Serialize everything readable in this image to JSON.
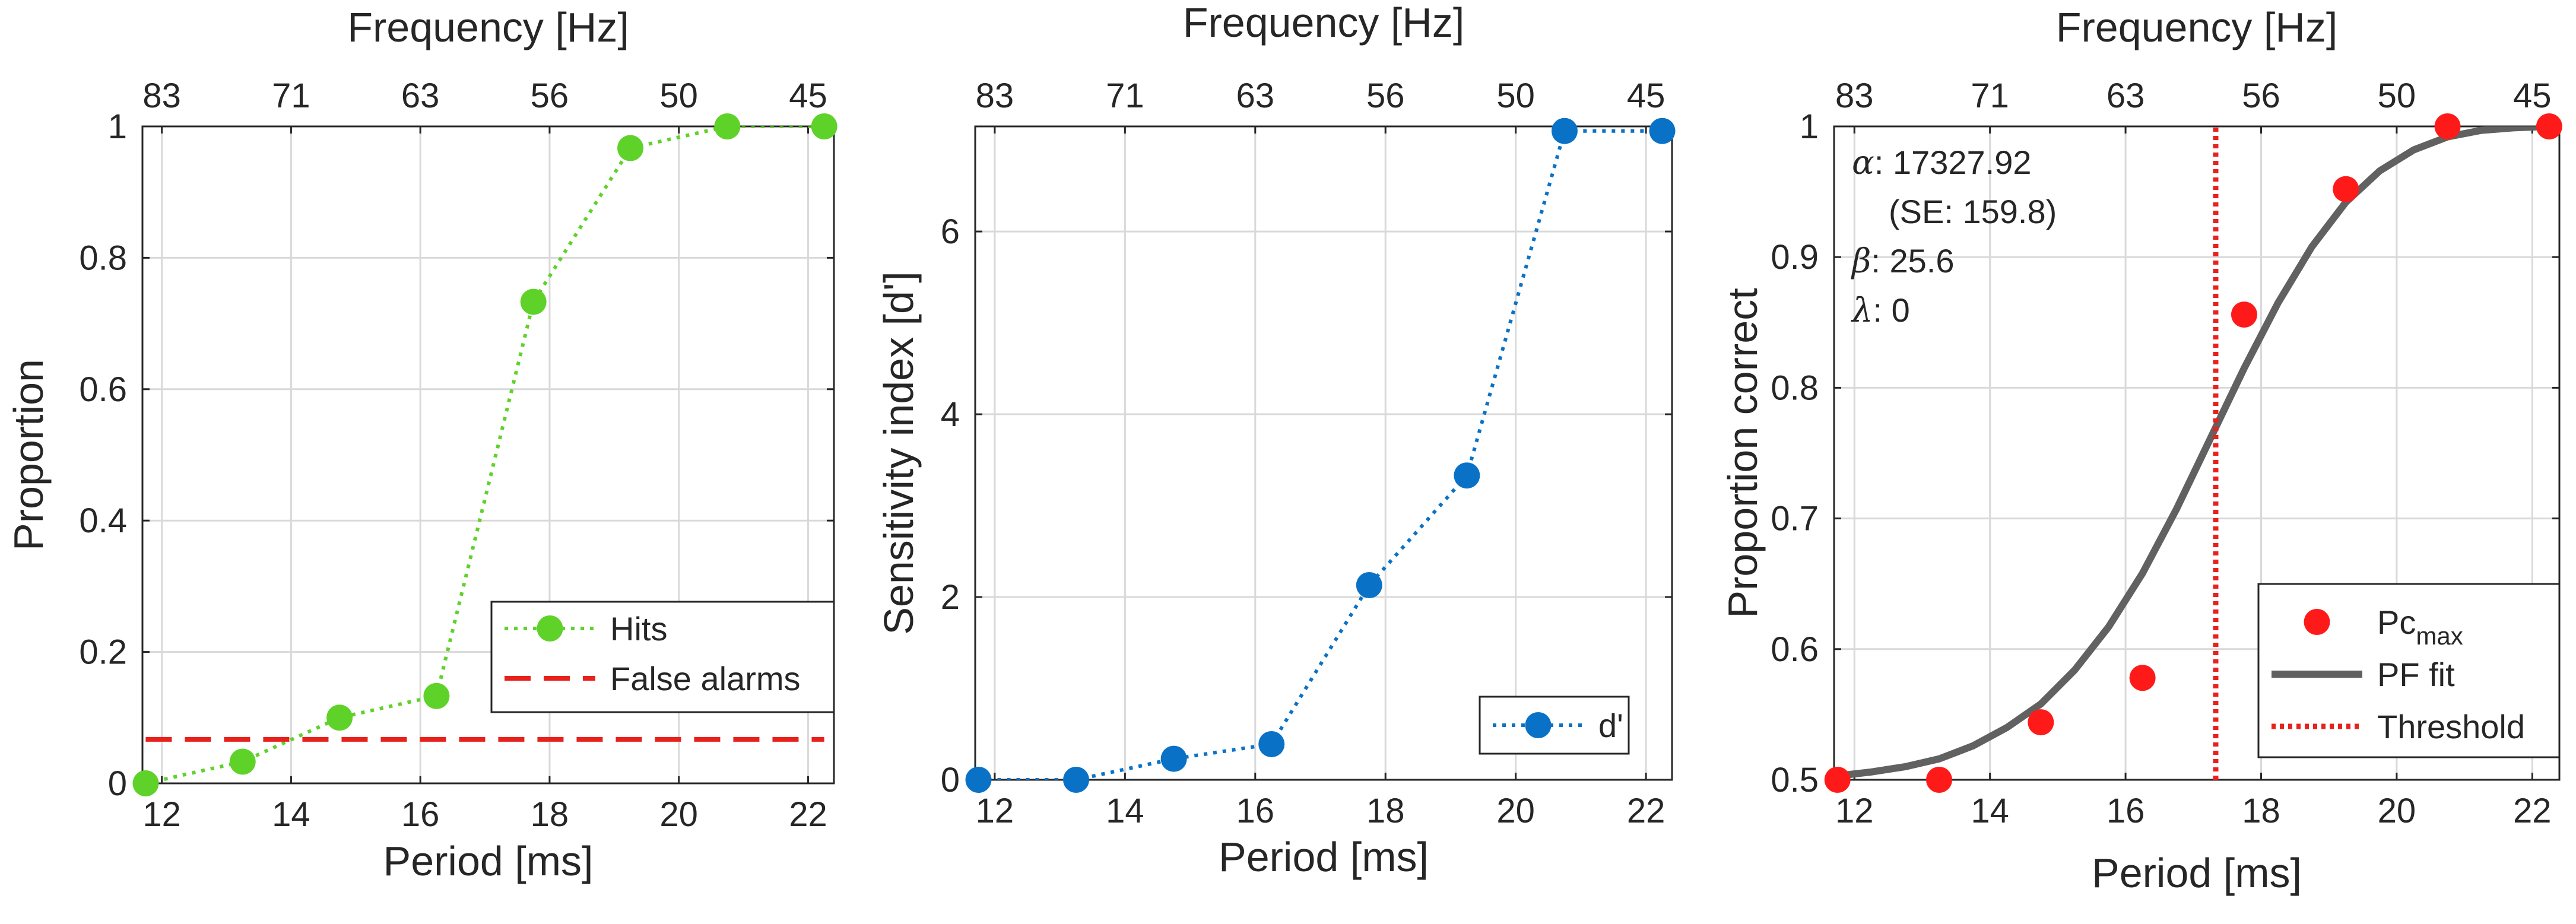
{
  "chart_data": [
    {
      "type": "line",
      "xlabel": "Period [ms]",
      "ylabel": "Proportion",
      "top_axis_label": "Frequency [Hz]",
      "x_ticks": [
        "12",
        "14",
        "16",
        "18",
        "20",
        "22"
      ],
      "y_ticks": [
        "0",
        "0.2",
        "0.4",
        "0.6",
        "0.8",
        "1"
      ],
      "top_ticks": [
        "83",
        "71",
        "63",
        "56",
        "50",
        "45"
      ],
      "xlim": [
        11.7,
        22.4
      ],
      "ylim": [
        0,
        1
      ],
      "grid": true,
      "legend_position": "bottom-right",
      "series": [
        {
          "name": "Hits",
          "style": "dotted-markers",
          "color": "#5fd22a",
          "x": [
            11.75,
            13.25,
            14.75,
            16.25,
            17.75,
            19.25,
            20.75,
            22.25
          ],
          "y": [
            0.0,
            0.033,
            0.1,
            0.133,
            0.733,
            0.967,
            1.0,
            1.0
          ]
        },
        {
          "name": "False alarms",
          "style": "dashed",
          "color": "#e8211c",
          "x": [
            11.75,
            22.25
          ],
          "y": [
            0.067,
            0.067
          ]
        }
      ]
    },
    {
      "type": "line",
      "xlabel": "Period [ms]",
      "ylabel": "Sensitivity index [d']",
      "top_axis_label": "Frequency [Hz]",
      "x_ticks": [
        "12",
        "14",
        "16",
        "18",
        "20",
        "22"
      ],
      "y_ticks": [
        "0",
        "2",
        "4",
        "6"
      ],
      "top_ticks": [
        "83",
        "71",
        "63",
        "56",
        "50",
        "45"
      ],
      "xlim": [
        11.7,
        22.4
      ],
      "ylim": [
        0,
        7.15
      ],
      "grid": true,
      "legend_position": "bottom-right",
      "series": [
        {
          "name": "d'",
          "style": "dotted-markers",
          "color": "#0a72c6",
          "x": [
            11.75,
            13.25,
            14.75,
            16.25,
            17.75,
            19.25,
            20.75,
            22.25
          ],
          "y": [
            0.0,
            0.0,
            0.23,
            0.39,
            2.13,
            3.33,
            7.1,
            7.1
          ]
        }
      ]
    },
    {
      "type": "scatter",
      "xlabel": "Period [ms]",
      "ylabel": "Proportion correct",
      "top_axis_label": "Frequency [Hz]",
      "x_ticks": [
        "12",
        "14",
        "16",
        "18",
        "20",
        "22"
      ],
      "y_ticks": [
        "0.5",
        "0.6",
        "0.7",
        "0.8",
        "0.9",
        "1"
      ],
      "top_ticks": [
        "83",
        "71",
        "63",
        "56",
        "50",
        "45"
      ],
      "xlim": [
        11.7,
        22.4
      ],
      "ylim": [
        0.5,
        1
      ],
      "grid": true,
      "legend_position": "bottom-right",
      "series": [
        {
          "name": "Pc",
          "name_subscript": "max",
          "style": "markers",
          "color": "#ff1a1a",
          "x": [
            11.75,
            13.25,
            14.75,
            16.25,
            17.75,
            19.25,
            20.75,
            22.25
          ],
          "y": [
            0.5,
            0.5,
            0.544,
            0.578,
            0.856,
            0.952,
            1.0,
            1.0
          ]
        },
        {
          "name": "PF fit",
          "style": "solid",
          "color": "#616161",
          "x": [
            11.75,
            12.25,
            12.75,
            13.25,
            13.75,
            14.25,
            14.75,
            15.25,
            15.75,
            16.25,
            16.75,
            17.25,
            17.75,
            18.25,
            18.75,
            19.25,
            19.75,
            20.25,
            20.75,
            21.25,
            21.75,
            22.25
          ],
          "y": [
            0.503,
            0.506,
            0.51,
            0.516,
            0.526,
            0.54,
            0.558,
            0.584,
            0.617,
            0.658,
            0.707,
            0.761,
            0.815,
            0.865,
            0.908,
            0.942,
            0.966,
            0.982,
            0.992,
            0.997,
            0.999,
            1.0
          ]
        },
        {
          "name": "Threshold",
          "style": "dotted",
          "color": "#e8211c",
          "x": [
            17.33,
            17.33
          ],
          "y": [
            0.5,
            1.0
          ]
        }
      ],
      "annotations": [
        {
          "symbol": "α",
          "text": ": 17327.92"
        },
        {
          "symbol": "",
          "text": "(SE: 159.8)"
        },
        {
          "symbol": "β",
          "text": ": 25.6"
        },
        {
          "symbol": "λ",
          "text": ": 0"
        }
      ]
    }
  ]
}
